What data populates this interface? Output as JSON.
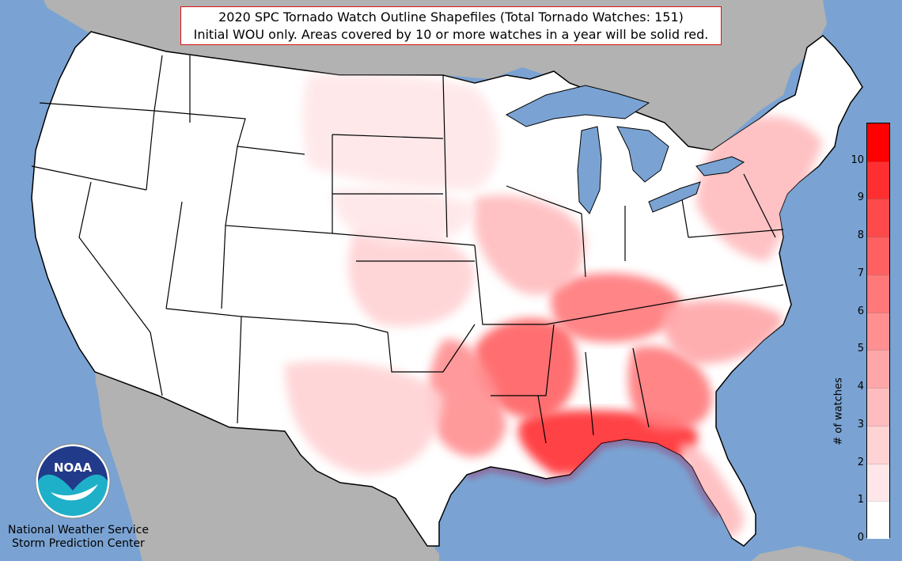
{
  "title": {
    "line1": "2020 SPC Tornado Watch Outline Shapefiles (Total Tornado Watches: 151)",
    "line2": "Initial WOU only. Areas covered by 10 or more watches in a year will be solid red."
  },
  "logo": {
    "text": "NOAA"
  },
  "credit": {
    "line1": "National Weather Service",
    "line2": "Storm Prediction Center"
  },
  "colorbar": {
    "label": "# of watches",
    "ticks": [
      "0",
      "1",
      "2",
      "3",
      "4",
      "5",
      "6",
      "7",
      "8",
      "9",
      "10"
    ],
    "colors": [
      "#ffffff",
      "#ffe6e8",
      "#ffd2d4",
      "#ffbcbe",
      "#ffa6a8",
      "#ff8f91",
      "#ff787a",
      "#ff6062",
      "#ff4a4c",
      "#ff2f31",
      "#ff0000"
    ]
  },
  "colors": {
    "ocean": "#7aa3d3",
    "land_foreign": "#b2b2b2",
    "land_us": "#ffffff",
    "lakes": "#7aa3d3"
  },
  "map_data": {
    "type": "choropleth",
    "unit": "watch count per area",
    "shading_regions": [
      {
        "region": "Gulf Coast (LA, MS, AL, FL panhandle)",
        "level": 9
      },
      {
        "region": "Mississippi Delta / Arkansas",
        "level": 7
      },
      {
        "region": "Tennessee / Kentucky",
        "level": 6
      },
      {
        "region": "Georgia",
        "level": 6
      },
      {
        "region": "East Texas / Louisiana",
        "level": 5
      },
      {
        "region": "Carolinas",
        "level": 4
      },
      {
        "region": "Florida peninsula",
        "level": 3
      },
      {
        "region": "Illinois / Missouri",
        "level": 3
      },
      {
        "region": "Mid-Atlantic / New England",
        "level": 3
      },
      {
        "region": "Oklahoma / Kansas",
        "level": 2
      },
      {
        "region": "Central Texas",
        "level": 2
      },
      {
        "region": "Dakotas / Minnesota",
        "level": 1
      },
      {
        "region": "Nebraska / Iowa",
        "level": 1
      }
    ]
  }
}
